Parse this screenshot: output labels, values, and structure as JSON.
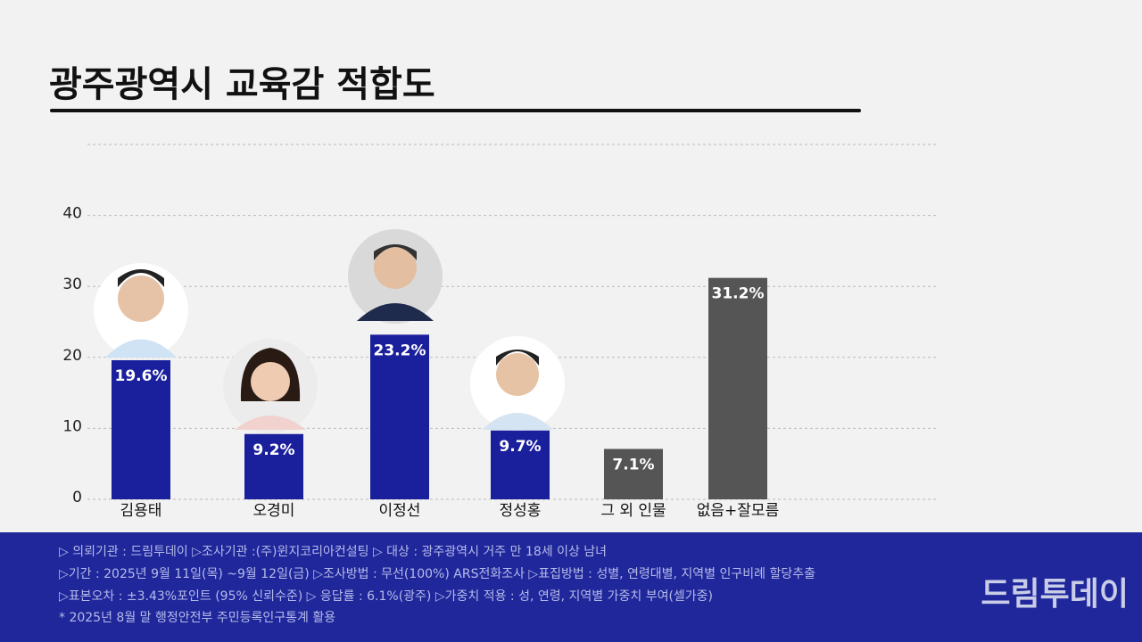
{
  "chart_data": {
    "type": "bar",
    "title": "광주광역시 교육감 적합도",
    "categories": [
      "김용태",
      "오경미",
      "이정선",
      "정성홍",
      "그 외 인물",
      "없음+잘모름"
    ],
    "values": [
      19.6,
      9.2,
      23.2,
      9.7,
      7.1,
      31.2
    ],
    "value_labels": [
      "19.6%",
      "9.2%",
      "23.2%",
      "9.7%",
      "7.1%",
      "31.2%"
    ],
    "colors": [
      "#1a1f9c",
      "#1a1f9c",
      "#1a1f9c",
      "#1a1f9c",
      "#555555",
      "#555555"
    ],
    "ylim": [
      0,
      50
    ],
    "yticks": [
      0,
      10,
      20,
      30,
      40
    ],
    "grid": true
  },
  "footer": {
    "notes": [
      "▷ 의뢰기관 : 드림투데이  ▷조사기관 :(주)윈지코리아컨설팅  ▷ 대상 : 광주광역시 거주 만 18세 이상 남녀",
      "▷기간 : 2025년 9월 11일(목) ~9월 12일(금) ▷조사방법 : 무선(100%) ARS전화조사 ▷표집방법 : 성별, 연령대별, 지역별  인구비례 할당추출",
      "▷표본오차 : ±3.43%포인트 (95% 신뢰수준)  ▷ 응답률 : 6.1%(광주) ▷가중치 적용 : 성, 연령, 지역별 가중치 부여(셀가중)",
      "* 2025년 8월 말 행정안전부 주민등록인구통계 활용"
    ],
    "logo": "드림투데이"
  }
}
